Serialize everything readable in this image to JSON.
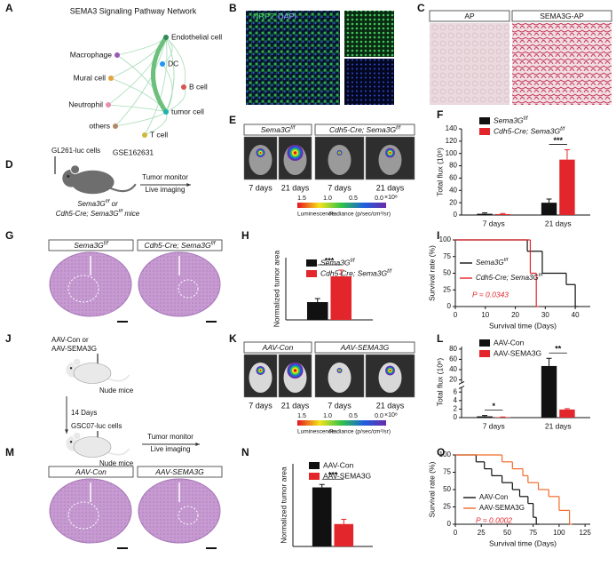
{
  "panel_labels": [
    "A",
    "B",
    "C",
    "D",
    "E",
    "F",
    "G",
    "H",
    "I",
    "J",
    "K",
    "L",
    "M",
    "N",
    "O"
  ],
  "network": {
    "title": "SEMA3 Signaling Pathway Network",
    "nodes": [
      "Macrophage",
      "Endothelial cell",
      "DC",
      "Mural cell",
      "B cell",
      "Neutrophil",
      "tumor cell",
      "others",
      "T cell"
    ],
    "source": "GSE162631"
  },
  "staining_b": {
    "channels": [
      "NRP2",
      "DAPI"
    ]
  },
  "staining_c": {
    "labels": [
      "AP",
      "SEMA3G-AP"
    ]
  },
  "schematic_d": {
    "cells": "GL261-luc cells",
    "steps": [
      "Tumor monitor",
      "Live imaging"
    ],
    "mice": [
      "Sema3Gf/f or",
      "Cdh5-Cre; Sema3Gf/f mice"
    ]
  },
  "imaging_e": {
    "groups": [
      "Sema3Gf/f",
      "Cdh5-Cre; Sema3Gf/f"
    ],
    "timepoints": [
      "7 days",
      "21 days",
      "7 days",
      "21 days"
    ],
    "colorbar": {
      "ticks": [
        "1.5",
        "1.0",
        "0.5",
        "0.0"
      ],
      "scale": "×10⁸",
      "left": "Luminescence",
      "right": "Radiance (p/sec/cm²/sr)"
    }
  },
  "histology_g": {
    "labels": [
      "Sema3Gf/f",
      "Cdh5-Cre; Sema3Gf/f"
    ]
  },
  "schematic_j": {
    "treatment": [
      "AAV-Con or",
      "AAV-SEMA3G"
    ],
    "mice": [
      "Nude mice",
      "Nude mice"
    ],
    "interval": "14 Days",
    "cells": "GSC07-luc cells",
    "steps": [
      "Tumor monitor",
      "Live imaging"
    ]
  },
  "imaging_k": {
    "groups": [
      "AAV-Con",
      "AAV-SEMA3G"
    ],
    "timepoints": [
      "7 days",
      "21 days",
      "7 days",
      "21 days"
    ],
    "colorbar": {
      "ticks": [
        "1.5",
        "1.0",
        "0.5",
        "0.0"
      ],
      "scale": "×10⁸",
      "left": "Luminescence",
      "right": "Radiance (p/sec/cm²/sr)"
    }
  },
  "histology_m": {
    "labels": [
      "AAV-Con",
      "AAV-SEMA3G"
    ]
  },
  "chart_data": [
    {
      "type": "bar",
      "ylabel": "Total flux (10⁸)",
      "categories": [
        "7 days",
        "21 days"
      ],
      "series": [
        {
          "name": "Sema3Gf/f",
          "color": "#111111",
          "values": [
            2,
            20
          ],
          "errors": [
            1.5,
            6
          ]
        },
        {
          "name": "Cdh5-Cre; Sema3Gf/f",
          "color": "#e3262b",
          "values": [
            1.5,
            90
          ],
          "errors": [
            1,
            16
          ]
        }
      ],
      "ylim": [
        0,
        140
      ],
      "yticks": [
        0,
        20,
        40,
        60,
        80,
        100,
        120,
        140
      ],
      "legend": "upper left",
      "annotations": [
        "***"
      ]
    },
    {
      "type": "bar",
      "ylabel": "Normalized tumor area",
      "series": [
        {
          "name": "Sema3Gf/f",
          "color": "#111111",
          "values": [
            1.0
          ],
          "errors": [
            0.2
          ]
        },
        {
          "name": "Cdh5-Cre; Sema3Gf/f",
          "color": "#e3262b",
          "values": [
            2.45
          ],
          "errors": [
            0.35
          ]
        }
      ],
      "ylim": [
        0,
        3.5
      ],
      "legend": "upper right",
      "annotations": [
        "***"
      ]
    },
    {
      "type": "line",
      "step": true,
      "xlabel": "Survival time (Days)",
      "ylabel": "Survival rate (%)",
      "series": [
        {
          "name": "Sema3Gf/f",
          "color": "#111111",
          "x": [
            0,
            24,
            29,
            37,
            40
          ],
          "values": [
            100,
            83,
            50,
            33,
            0
          ]
        },
        {
          "name": "Cdh5-Cre; Sema3Gf/f",
          "color": "#e3262b",
          "x": [
            0,
            25,
            27
          ],
          "values": [
            100,
            50,
            0
          ]
        }
      ],
      "xlim": [
        0,
        45
      ],
      "xticks": [
        0,
        10,
        20,
        30,
        40
      ],
      "ylim": [
        0,
        100
      ],
      "yticks": [
        0,
        25,
        50,
        75,
        100
      ],
      "legend": "upper left",
      "annotations": [
        "P = 0.0343"
      ]
    },
    {
      "type": "bar",
      "ylabel": "Total flux (10⁶)",
      "categories": [
        "7 days",
        "21 days"
      ],
      "series": [
        {
          "name": "AAV-Con",
          "color": "#111111",
          "values": [
            0.3,
            47
          ],
          "errors": [
            0.2,
            15
          ]
        },
        {
          "name": "AAV-SEMA3G",
          "color": "#e3262b",
          "values": [
            0.1,
            1.9
          ],
          "errors": [
            0.05,
            0.2
          ]
        }
      ],
      "ylim": [
        0,
        85
      ],
      "axis_break": [
        7,
        15
      ],
      "yticks": [
        0,
        2,
        4,
        6,
        20,
        40,
        60,
        80
      ],
      "legend": "upper left",
      "annotations": [
        "*",
        "**"
      ]
    },
    {
      "type": "bar",
      "ylabel": "Normalized tumor area",
      "series": [
        {
          "name": "AAV-Con",
          "color": "#111111",
          "values": [
            1.0
          ],
          "errors": [
            0.05
          ]
        },
        {
          "name": "AAV-SEMA3G",
          "color": "#e3262b",
          "values": [
            0.38
          ],
          "errors": [
            0.08
          ]
        }
      ],
      "ylim": [
        0,
        1.4
      ],
      "legend": "upper left",
      "annotations": [
        "***"
      ]
    },
    {
      "type": "line",
      "step": true,
      "xlabel": "Survival time (Days)",
      "ylabel": "Survival rate (%)",
      "series": [
        {
          "name": "AAV-Con",
          "color": "#111111",
          "x": [
            0,
            20,
            28,
            35,
            45,
            55,
            62,
            70,
            75,
            78
          ],
          "values": [
            100,
            90,
            80,
            70,
            60,
            50,
            40,
            30,
            10,
            0
          ]
        },
        {
          "name": "AAV-SEMA3G",
          "color": "#f26b2a",
          "x": [
            0,
            45,
            55,
            65,
            70,
            80,
            90,
            100,
            110
          ],
          "values": [
            100,
            90,
            80,
            70,
            60,
            50,
            40,
            20,
            0
          ]
        }
      ],
      "xlim": [
        0,
        130
      ],
      "xticks": [
        0,
        25,
        50,
        75,
        100,
        125
      ],
      "ylim": [
        0,
        100
      ],
      "yticks": [
        0,
        25,
        50,
        75,
        100
      ],
      "legend": "lower left",
      "annotations": [
        "P = 0.0002"
      ]
    }
  ]
}
